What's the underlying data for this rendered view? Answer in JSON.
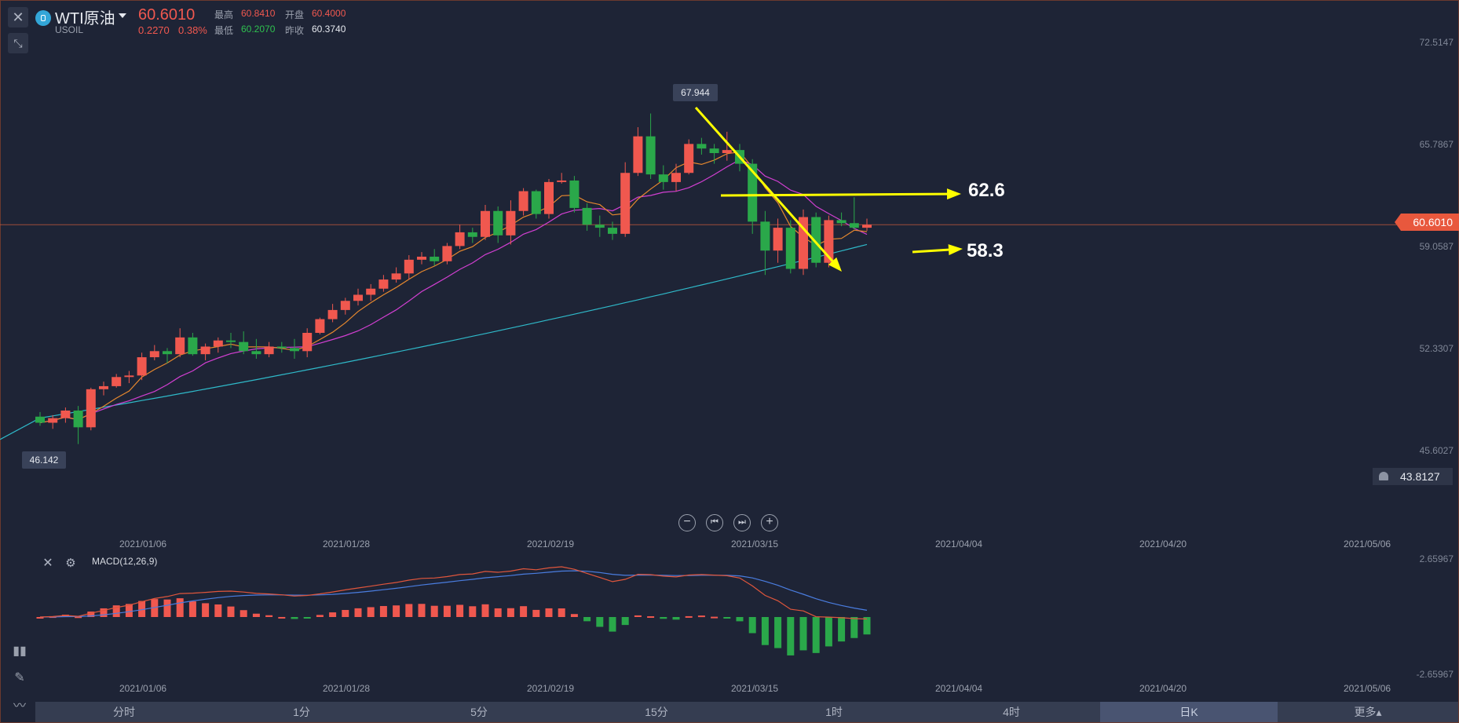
{
  "header": {
    "title": "WTI原油",
    "symbol": "USOIL",
    "price": "60.6010",
    "change": "0.2270",
    "change_pct": "0.38%",
    "quote": {
      "high_label": "最高",
      "high_value": "60.8410",
      "open_label": "开盘",
      "open_value": "60.4000",
      "low_label": "最低",
      "low_value": "60.2070",
      "prev_label": "昨收",
      "prev_value": "60.3740"
    }
  },
  "colors": {
    "up": "#f0584f",
    "down": "#2aa84a",
    "ma_short": "#e6882e",
    "ma_mid": "#d23fd2",
    "ma_long": "#2fb9c9",
    "annotation": "#ffff00",
    "background": "#1e2436"
  },
  "price_axis": [
    "72.5147",
    "65.7867",
    "59.0587",
    "52.3307",
    "45.6027"
  ],
  "current_price_tag": "60.6010",
  "alert_price": "43.8127",
  "high_marker": "67.944",
  "low_marker": "46.142",
  "annotations": {
    "upper": "62.6",
    "lower": "58.3"
  },
  "date_axis": [
    "2021/01/06",
    "2021/01/28",
    "2021/02/19",
    "2021/03/15",
    "2021/04/04",
    "2021/04/20",
    "2021/05/06"
  ],
  "macd": {
    "title": "MACD(12,26,9)",
    "axis_top": "2.65967",
    "axis_bottom": "-2.65967"
  },
  "timeframes": [
    {
      "label": "分时"
    },
    {
      "label": "1分"
    },
    {
      "label": "5分"
    },
    {
      "label": "15分"
    },
    {
      "label": "1时"
    },
    {
      "label": "4时"
    },
    {
      "label": "日K"
    },
    {
      "label": "更多▴"
    }
  ],
  "chart_data": {
    "type": "candlestick",
    "title": "WTI原油",
    "x": [
      "2020/12/29",
      "2020/12/30",
      "2020/12/31",
      "2021/01/04",
      "2021/01/05",
      "2021/01/06",
      "2021/01/07",
      "2021/01/08",
      "2021/01/11",
      "2021/01/12",
      "2021/01/13",
      "2021/01/14",
      "2021/01/15",
      "2021/01/18",
      "2021/01/19",
      "2021/01/20",
      "2021/01/21",
      "2021/01/22",
      "2021/01/25",
      "2021/01/26",
      "2021/01/27",
      "2021/01/28",
      "2021/01/29",
      "2021/02/01",
      "2021/02/02",
      "2021/02/03",
      "2021/02/04",
      "2021/02/05",
      "2021/02/08",
      "2021/02/09",
      "2021/02/10",
      "2021/02/11",
      "2021/02/12",
      "2021/02/15",
      "2021/02/16",
      "2021/02/17",
      "2021/02/18",
      "2021/02/19",
      "2021/02/22",
      "2021/02/23",
      "2021/02/24",
      "2021/02/25",
      "2021/02/26",
      "2021/03/01",
      "2021/03/02",
      "2021/03/03",
      "2021/03/04",
      "2021/03/05",
      "2021/03/08",
      "2021/03/09",
      "2021/03/10",
      "2021/03/11",
      "2021/03/12",
      "2021/03/15",
      "2021/03/16",
      "2021/03/17",
      "2021/03/18",
      "2021/03/19",
      "2021/03/22",
      "2021/03/23",
      "2021/03/24",
      "2021/03/25",
      "2021/03/26",
      "2021/03/29",
      "2021/03/30",
      "2021/03/31"
    ],
    "ohlc": [
      [
        48.0,
        48.3,
        47.4,
        47.6
      ],
      [
        47.6,
        48.1,
        47.2,
        47.9
      ],
      [
        47.9,
        48.6,
        47.6,
        48.4
      ],
      [
        48.4,
        48.7,
        46.2,
        47.3
      ],
      [
        47.3,
        49.9,
        47.1,
        49.8
      ],
      [
        49.8,
        50.3,
        49.4,
        50.0
      ],
      [
        50.0,
        50.8,
        49.9,
        50.6
      ],
      [
        50.6,
        51.0,
        50.2,
        50.7
      ],
      [
        50.7,
        52.2,
        50.4,
        51.9
      ],
      [
        51.9,
        52.7,
        51.7,
        52.3
      ],
      [
        52.3,
        52.5,
        51.5,
        52.1
      ],
      [
        52.1,
        53.8,
        51.9,
        53.2
      ],
      [
        53.2,
        53.5,
        52.0,
        52.1
      ],
      [
        52.1,
        52.8,
        51.7,
        52.6
      ],
      [
        52.6,
        53.2,
        52.2,
        53.0
      ],
      [
        53.0,
        53.5,
        52.5,
        52.9
      ],
      [
        52.9,
        53.6,
        52.1,
        52.3
      ],
      [
        52.3,
        53.1,
        51.8,
        52.1
      ],
      [
        52.1,
        52.9,
        51.9,
        52.6
      ],
      [
        52.6,
        52.9,
        52.2,
        52.5
      ],
      [
        52.5,
        53.1,
        51.8,
        52.3
      ],
      [
        52.3,
        53.8,
        51.9,
        53.5
      ],
      [
        53.5,
        54.5,
        53.4,
        54.4
      ],
      [
        54.4,
        55.4,
        54.2,
        55.0
      ],
      [
        55.0,
        55.8,
        54.7,
        55.6
      ],
      [
        55.6,
        56.4,
        55.3,
        56.0
      ],
      [
        56.0,
        56.7,
        55.6,
        56.4
      ],
      [
        56.4,
        57.3,
        56.2,
        57.0
      ],
      [
        57.0,
        57.8,
        56.8,
        57.4
      ],
      [
        57.4,
        58.6,
        57.0,
        58.3
      ],
      [
        58.3,
        58.8,
        58.0,
        58.5
      ],
      [
        58.5,
        59.0,
        57.9,
        58.2
      ],
      [
        58.2,
        59.4,
        58.0,
        59.2
      ],
      [
        59.2,
        60.6,
        59.0,
        60.1
      ],
      [
        60.1,
        60.4,
        59.4,
        59.8
      ],
      [
        59.8,
        61.9,
        59.6,
        61.5
      ],
      [
        61.5,
        61.8,
        59.4,
        59.9
      ],
      [
        59.9,
        62.2,
        59.3,
        61.5
      ],
      [
        61.5,
        63.0,
        61.2,
        62.8
      ],
      [
        62.8,
        62.9,
        61.0,
        61.3
      ],
      [
        61.3,
        63.6,
        61.0,
        63.4
      ],
      [
        63.4,
        64.0,
        63.3,
        63.5
      ],
      [
        63.5,
        63.8,
        61.4,
        61.7
      ],
      [
        61.7,
        62.0,
        60.2,
        60.6
      ],
      [
        60.6,
        61.2,
        59.8,
        60.4
      ],
      [
        60.4,
        60.8,
        59.6,
        60.0
      ],
      [
        60.0,
        64.7,
        59.8,
        64.0
      ],
      [
        64.0,
        67.0,
        63.8,
        66.4
      ],
      [
        66.4,
        67.9,
        63.6,
        63.9
      ],
      [
        63.9,
        64.5,
        62.9,
        63.4
      ],
      [
        63.4,
        64.6,
        62.8,
        64.0
      ],
      [
        64.0,
        66.2,
        63.9,
        65.9
      ],
      [
        65.9,
        66.3,
        65.2,
        65.6
      ],
      [
        65.6,
        65.9,
        64.6,
        65.3
      ],
      [
        65.3,
        66.7,
        64.8,
        65.5
      ],
      [
        65.5,
        65.9,
        64.1,
        64.6
      ],
      [
        64.6,
        64.9,
        60.0,
        60.8
      ],
      [
        60.8,
        61.5,
        57.3,
        58.9
      ],
      [
        58.9,
        61.0,
        58.1,
        60.4
      ],
      [
        60.4,
        60.9,
        57.4,
        57.7
      ],
      [
        57.7,
        61.6,
        57.3,
        61.1
      ],
      [
        61.1,
        61.4,
        57.8,
        58.1
      ],
      [
        58.1,
        61.2,
        57.8,
        60.9
      ],
      [
        60.9,
        61.4,
        60.5,
        60.7
      ],
      [
        60.7,
        62.4,
        60.3,
        60.4
      ],
      [
        60.4,
        61.0,
        60.2,
        60.6
      ]
    ],
    "ylim": [
      43.8127,
      72.5147
    ],
    "notes": "Candlestick with 3 moving averages (short/orange, mid/magenta, long/cyan) and MACD(12,26,9) subpanel; drawn annotations point to 62.6 and 58.3"
  }
}
